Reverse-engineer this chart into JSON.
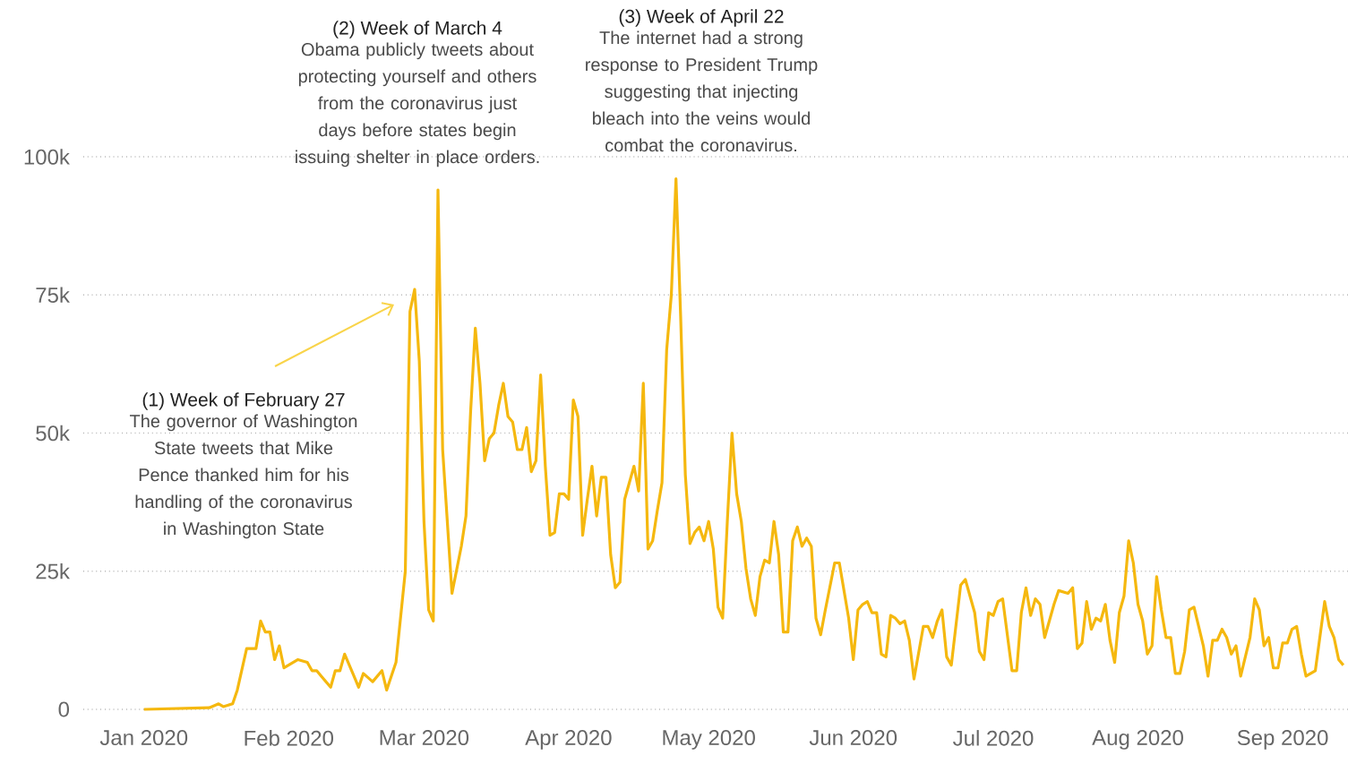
{
  "chart_data": {
    "type": "line",
    "x": [
      "2020-01-01",
      "2020-01-15",
      "2020-01-17",
      "2020-01-18",
      "2020-01-20",
      "2020-01-21",
      "2020-01-23",
      "2020-01-25",
      "2020-01-26",
      "2020-01-27",
      "2020-01-28",
      "2020-01-29",
      "2020-01-30",
      "2020-01-31",
      "2020-02-03",
      "2020-02-05",
      "2020-02-06",
      "2020-02-07",
      "2020-02-08",
      "2020-02-10",
      "2020-02-11",
      "2020-02-12",
      "2020-02-13",
      "2020-02-15",
      "2020-02-16",
      "2020-02-17",
      "2020-02-19",
      "2020-02-21",
      "2020-02-22",
      "2020-02-24",
      "2020-02-26",
      "2020-02-27",
      "2020-02-28",
      "2020-02-29",
      "2020-03-01",
      "2020-03-02",
      "2020-03-03",
      "2020-03-04",
      "2020-03-05",
      "2020-03-07",
      "2020-03-09",
      "2020-03-10",
      "2020-03-11",
      "2020-03-12",
      "2020-03-13",
      "2020-03-14",
      "2020-03-15",
      "2020-03-16",
      "2020-03-17",
      "2020-03-18",
      "2020-03-19",
      "2020-03-20",
      "2020-03-21",
      "2020-03-22",
      "2020-03-23",
      "2020-03-24",
      "2020-03-25",
      "2020-03-26",
      "2020-03-27",
      "2020-03-28",
      "2020-03-29",
      "2020-03-30",
      "2020-03-31",
      "2020-04-01",
      "2020-04-02",
      "2020-04-03",
      "2020-04-04",
      "2020-04-05",
      "2020-04-06",
      "2020-04-07",
      "2020-04-08",
      "2020-04-09",
      "2020-04-10",
      "2020-04-11",
      "2020-04-12",
      "2020-04-13",
      "2020-04-15",
      "2020-04-16",
      "2020-04-17",
      "2020-04-18",
      "2020-04-19",
      "2020-04-20",
      "2020-04-21",
      "2020-04-22",
      "2020-04-23",
      "2020-04-24",
      "2020-04-25",
      "2020-04-26",
      "2020-04-27",
      "2020-04-28",
      "2020-04-29",
      "2020-04-30",
      "2020-05-01",
      "2020-05-02",
      "2020-05-03",
      "2020-05-04",
      "2020-05-05",
      "2020-05-06",
      "2020-05-07",
      "2020-05-08",
      "2020-05-09",
      "2020-05-10",
      "2020-05-11",
      "2020-05-12",
      "2020-05-13",
      "2020-05-14",
      "2020-05-15",
      "2020-05-16",
      "2020-05-17",
      "2020-05-18",
      "2020-05-19",
      "2020-05-20",
      "2020-05-21",
      "2020-05-22",
      "2020-05-23",
      "2020-05-24",
      "2020-05-25",
      "2020-05-26",
      "2020-05-28",
      "2020-05-29",
      "2020-05-31",
      "2020-06-01",
      "2020-06-02",
      "2020-06-03",
      "2020-06-04",
      "2020-06-05",
      "2020-06-06",
      "2020-06-07",
      "2020-06-08",
      "2020-06-09",
      "2020-06-10",
      "2020-06-11",
      "2020-06-12",
      "2020-06-13",
      "2020-06-14",
      "2020-06-16",
      "2020-06-17",
      "2020-06-18",
      "2020-06-19",
      "2020-06-20",
      "2020-06-21",
      "2020-06-22",
      "2020-06-24",
      "2020-06-25",
      "2020-06-27",
      "2020-06-28",
      "2020-06-29",
      "2020-06-30",
      "2020-07-01",
      "2020-07-02",
      "2020-07-03",
      "2020-07-05",
      "2020-07-06",
      "2020-07-07",
      "2020-07-08",
      "2020-07-09",
      "2020-07-10",
      "2020-07-11",
      "2020-07-12",
      "2020-07-14",
      "2020-07-15",
      "2020-07-17",
      "2020-07-18",
      "2020-07-19",
      "2020-07-20",
      "2020-07-21",
      "2020-07-22",
      "2020-07-23",
      "2020-07-24",
      "2020-07-25",
      "2020-07-26",
      "2020-07-27",
      "2020-07-28",
      "2020-07-29",
      "2020-07-30",
      "2020-07-31",
      "2020-08-01",
      "2020-08-02",
      "2020-08-03",
      "2020-08-04",
      "2020-08-05",
      "2020-08-06",
      "2020-08-07",
      "2020-08-08",
      "2020-08-09",
      "2020-08-10",
      "2020-08-11",
      "2020-08-12",
      "2020-08-13",
      "2020-08-14",
      "2020-08-15",
      "2020-08-16",
      "2020-08-17",
      "2020-08-18",
      "2020-08-19",
      "2020-08-20",
      "2020-08-21",
      "2020-08-22",
      "2020-08-23",
      "2020-08-25",
      "2020-08-26",
      "2020-08-27",
      "2020-08-28",
      "2020-08-29",
      "2020-08-30",
      "2020-08-31",
      "2020-09-01",
      "2020-09-02",
      "2020-09-03",
      "2020-09-04",
      "2020-09-05",
      "2020-09-06",
      "2020-09-08",
      "2020-09-10",
      "2020-09-11",
      "2020-09-12",
      "2020-09-13",
      "2020-09-14"
    ],
    "values": [
      0,
      300,
      1000,
      500,
      1000,
      3500,
      11000,
      11000,
      16000,
      14000,
      14000,
      9000,
      11500,
      7500,
      9000,
      8500,
      7000,
      7000,
      6000,
      4000,
      7000,
      7000,
      10000,
      6000,
      4000,
      6500,
      5000,
      7000,
      3500,
      8500,
      25000,
      72000,
      76000,
      63000,
      34000,
      18000,
      16000,
      94000,
      47000,
      21000,
      29500,
      35000,
      54000,
      69000,
      59000,
      45000,
      49000,
      50000,
      55000,
      59000,
      53000,
      52000,
      47000,
      47000,
      51000,
      43000,
      45000,
      60500,
      44000,
      31500,
      32000,
      39000,
      39000,
      38000,
      56000,
      53000,
      31500,
      38000,
      44000,
      35000,
      42000,
      42000,
      28000,
      22000,
      23000,
      38000,
      44000,
      39500,
      59000,
      29000,
      30500,
      36000,
      41000,
      65000,
      75000,
      96000,
      71000,
      42500,
      30000,
      32000,
      33000,
      30500,
      34000,
      29000,
      18500,
      16500,
      34000,
      50000,
      39000,
      34000,
      25500,
      20000,
      17000,
      24000,
      27000,
      26500,
      34000,
      28000,
      14000,
      14000,
      30500,
      33000,
      29500,
      31000,
      29500,
      16500,
      13500,
      18000,
      26500,
      26500,
      16500,
      9000,
      18000,
      19000,
      19500,
      17500,
      17500,
      10000,
      9500,
      17000,
      16500,
      15500,
      16000,
      12500,
      5500,
      15000,
      15000,
      13000,
      16000,
      18000,
      9500,
      8000,
      22500,
      23500,
      17500,
      10500,
      9000,
      17500,
      17000,
      19500,
      20000,
      7000,
      7000,
      17500,
      22000,
      17000,
      20000,
      19000,
      13000,
      19000,
      21500,
      21000,
      22000,
      11000,
      12000,
      19500,
      14500,
      16500,
      16000,
      19000,
      12500,
      8500,
      17500,
      20500,
      30500,
      26500,
      19000,
      16000,
      10000,
      11500,
      24000,
      18000,
      13000,
      13000,
      6500,
      6500,
      10500,
      18000,
      18500,
      15000,
      11500,
      6000,
      12500,
      12500,
      14500,
      13000,
      10000,
      11500,
      6000,
      13000,
      20000,
      18000,
      11500,
      13000,
      7500,
      7500,
      12000,
      12000,
      14500,
      15000,
      10000,
      6000,
      7000,
      19500,
      15000,
      13000,
      9000,
      8000
    ],
    "color": "#f5b80f",
    "xlim": [
      "2019-12-19",
      "2020-09-15"
    ],
    "xticks": [
      {
        "value": "2020-01-01",
        "label": "Jan 2020"
      },
      {
        "value": "2020-02-01",
        "label": "Feb 2020"
      },
      {
        "value": "2020-03-01",
        "label": "Mar 2020"
      },
      {
        "value": "2020-04-01",
        "label": "Apr 2020"
      },
      {
        "value": "2020-05-01",
        "label": "May 2020"
      },
      {
        "value": "2020-06-01",
        "label": "Jun 2020"
      },
      {
        "value": "2020-07-01",
        "label": "Jul 2020"
      },
      {
        "value": "2020-08-01",
        "label": "Aug 2020"
      },
      {
        "value": "2020-09-01",
        "label": "Sep 2020"
      }
    ],
    "ylim": [
      0,
      100000
    ],
    "yticks": [
      0,
      {
        "value": 25000,
        "label": "25k"
      },
      {
        "value": 50000,
        "label": "50k"
      },
      {
        "value": 75000,
        "label": "75k"
      },
      {
        "value": 100000,
        "label": "100k"
      }
    ],
    "grid": "y",
    "marker": "none",
    "line_style": "solid",
    "annotations": [
      "(1) Week of February 27",
      "The governor of Washington State  tweets that Mike Pence thanked him for his handling of the coronavirus in  Washington State",
      "(2) Week of March 4",
      "Obama publicly tweets about protecting yourself and others from the coronavirus just days before states begin issuing shelter in place orders.",
      "(3) Week of April 22",
      "The internet had a strong response to President Trump suggesting that injecting bleach into the veins would combat the coronavirus."
    ]
  }
}
